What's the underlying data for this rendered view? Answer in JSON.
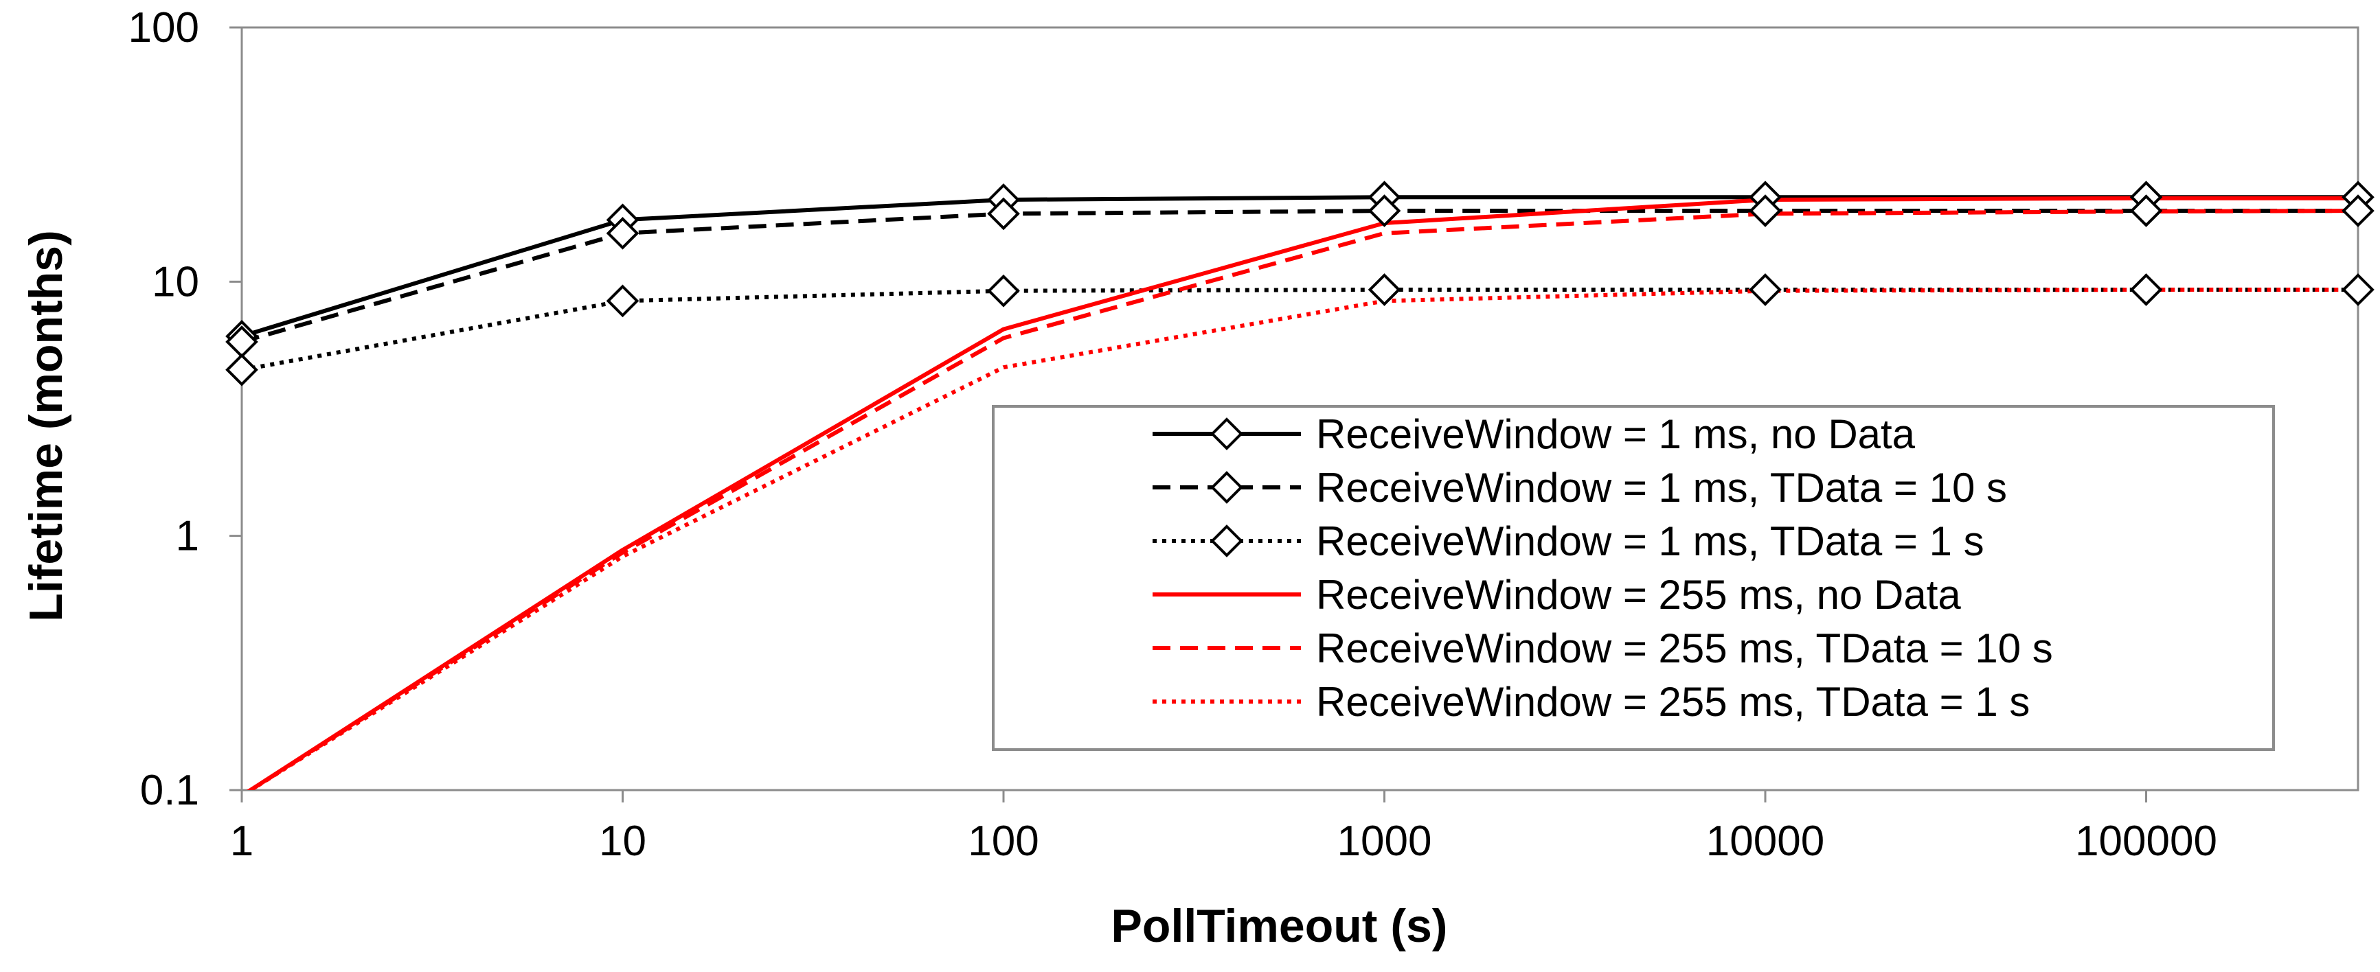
{
  "chart_data": {
    "type": "line",
    "xlabel": "PollTimeout (s)",
    "ylabel": "Lifetime (months)",
    "x_scale": "log",
    "y_scale": "log",
    "xlim": [
      1,
      360000
    ],
    "ylim": [
      0.1,
      100
    ],
    "x_ticks": [
      1,
      10,
      100,
      1000,
      10000,
      100000
    ],
    "x_tick_labels": [
      "1",
      "10",
      "100",
      "1000",
      "10000",
      "100000"
    ],
    "y_ticks": [
      0.1,
      1,
      10,
      100
    ],
    "y_tick_labels": [
      "0.1",
      "1",
      "10",
      "100"
    ],
    "grid": "none",
    "legend_position": "lower-right",
    "series": [
      {
        "name": "ReceiveWindow = 1 ms, no Data",
        "color": "#000000",
        "dash": "solid",
        "marker": "diamond",
        "x": [
          1,
          10,
          100,
          1000,
          10000,
          100000,
          360000
        ],
        "y": [
          6.1,
          17.5,
          21.0,
          21.5,
          21.5,
          21.5,
          21.5
        ]
      },
      {
        "name": "ReceiveWindow = 1 ms, TData = 10 s",
        "color": "#000000",
        "dash": "dashed",
        "marker": "diamond",
        "x": [
          1,
          10,
          100,
          1000,
          10000,
          100000,
          360000
        ],
        "y": [
          5.8,
          15.5,
          18.5,
          19.0,
          19.0,
          19.0,
          19.0
        ]
      },
      {
        "name": "ReceiveWindow = 1 ms, TData = 1 s",
        "color": "#000000",
        "dash": "dotted",
        "marker": "diamond",
        "x": [
          1,
          10,
          100,
          1000,
          10000,
          100000,
          360000
        ],
        "y": [
          4.5,
          8.4,
          9.2,
          9.3,
          9.3,
          9.3,
          9.3
        ]
      },
      {
        "name": "ReceiveWindow = 255 ms, no Data",
        "color": "#ff0000",
        "dash": "solid",
        "marker": "none",
        "x": [
          1,
          10,
          100,
          1000,
          10000,
          100000,
          360000
        ],
        "y": [
          0.095,
          0.88,
          6.5,
          17.0,
          21.0,
          21.3,
          21.3
        ]
      },
      {
        "name": "ReceiveWindow = 255 ms, TData = 10 s",
        "color": "#ff0000",
        "dash": "dashed",
        "marker": "none",
        "x": [
          1,
          10,
          100,
          1000,
          10000,
          100000,
          360000
        ],
        "y": [
          0.095,
          0.86,
          6.0,
          15.5,
          18.5,
          18.9,
          19.0
        ]
      },
      {
        "name": "ReceiveWindow = 255 ms, TData = 1 s",
        "color": "#ff0000",
        "dash": "dotted",
        "marker": "none",
        "x": [
          1,
          10,
          100,
          1000,
          10000,
          100000,
          360000
        ],
        "y": [
          0.095,
          0.83,
          4.6,
          8.4,
          9.2,
          9.3,
          9.3
        ]
      }
    ]
  }
}
